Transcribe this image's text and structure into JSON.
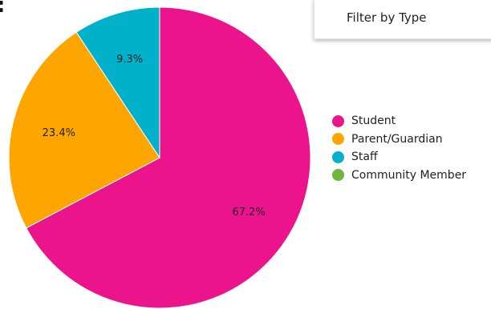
{
  "header": {
    "colon": ":",
    "filter_label": "Filter by Type"
  },
  "chart_data": {
    "type": "pie",
    "title": "",
    "slices": [
      {
        "label": "Student",
        "value": 67.2,
        "display": "67.2%",
        "color": "#EC148C"
      },
      {
        "label": "Parent/Guardian",
        "value": 23.4,
        "display": "23.4%",
        "color": "#FFA500"
      },
      {
        "label": "Staff",
        "value": 9.3,
        "display": "9.3%",
        "color": "#00B1C9"
      },
      {
        "label": "Community Member",
        "value": 0,
        "display": "",
        "color": "#6FB43F"
      }
    ],
    "legend_position": "right",
    "start_angle": "top",
    "direction": "clockwise"
  }
}
